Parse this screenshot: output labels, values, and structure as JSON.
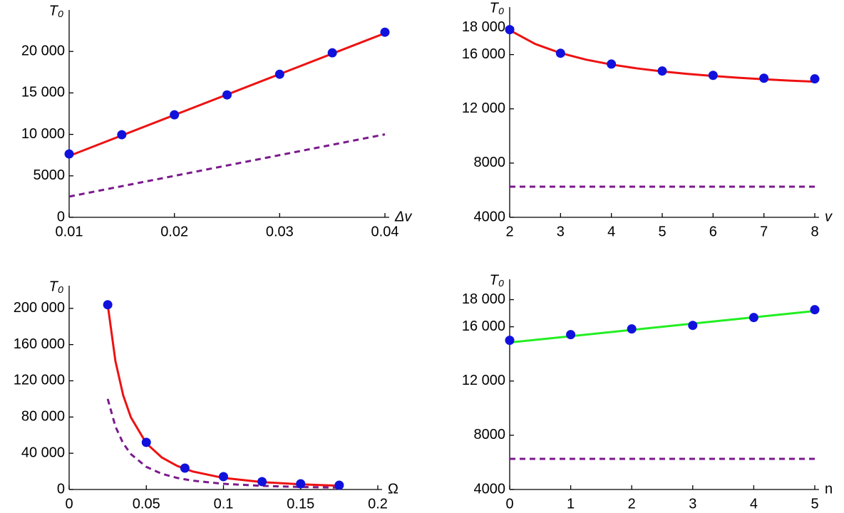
{
  "chart_data": [
    {
      "type": "line",
      "x_label": "Δv",
      "y_label": "T₀",
      "xlim": [
        0.01,
        0.04
      ],
      "xticks": [
        0.01,
        0.02,
        0.03,
        0.04
      ],
      "ylim": [
        0,
        25000
      ],
      "yticks": [
        0,
        5000,
        {
          "value": 10000,
          "label": "10 000"
        },
        {
          "value": 15000,
          "label": "15 000"
        },
        {
          "value": 20000,
          "label": "20 000"
        }
      ],
      "series": [
        {
          "style": "solid",
          "color": "#ee1111",
          "x": [
            0.01,
            0.04
          ],
          "values": [
            7400,
            22200
          ]
        },
        {
          "style": "dashed",
          "color": "#7a1a8c",
          "x": [
            0.01,
            0.04
          ],
          "values": [
            2500,
            10000
          ]
        },
        {
          "style": "markers",
          "color": "#1111dd",
          "x": [
            0.01,
            0.015,
            0.02,
            0.025,
            0.03,
            0.035,
            0.04
          ],
          "values": [
            7640,
            9960,
            12360,
            14760,
            17250,
            19830,
            22320
          ]
        }
      ]
    },
    {
      "type": "line",
      "x_label": "v",
      "y_label": "T₀",
      "xlim": [
        2,
        8
      ],
      "xticks": [
        2,
        3,
        4,
        5,
        6,
        7,
        8
      ],
      "ylim": [
        4000,
        19500
      ],
      "yticks": [
        4000,
        8000,
        {
          "value": 12000,
          "label": "12 000"
        },
        {
          "value": 16000,
          "label": "16 000"
        },
        {
          "value": 18000,
          "label": "18 000"
        }
      ],
      "series": [
        {
          "style": "solid",
          "color": "#ee1111",
          "x": [
            2,
            2.5,
            3,
            3.5,
            4,
            4.5,
            5,
            5.5,
            6,
            6.5,
            7,
            7.5,
            8
          ],
          "values": [
            17800,
            16786,
            16111,
            15628,
            15266,
            14985,
            14760,
            14575,
            14422,
            14292,
            14181,
            14084,
            14000
          ]
        },
        {
          "style": "dashed",
          "color": "#7a1a8c",
          "x": [
            2,
            8
          ],
          "values": [
            6260,
            6260
          ]
        },
        {
          "style": "markers",
          "color": "#1111dd",
          "x": [
            2,
            3,
            4,
            5,
            6,
            7,
            8
          ],
          "values": [
            17840,
            16100,
            15300,
            14790,
            14470,
            14260,
            14210
          ]
        }
      ]
    },
    {
      "type": "line",
      "x_label": "Ω",
      "y_label": "T₀",
      "xlim": [
        0,
        0.2
      ],
      "xticks": [
        0,
        0.05,
        0.1,
        0.15,
        0.2
      ],
      "ylim": [
        0,
        225000
      ],
      "yticks": [
        0,
        {
          "value": 40000,
          "label": "40 000"
        },
        {
          "value": 80000,
          "label": "80 000"
        },
        {
          "value": 120000,
          "label": "120 000"
        },
        {
          "value": 160000,
          "label": "160 000"
        },
        {
          "value": 200000,
          "label": "200 000"
        }
      ],
      "series": [
        {
          "style": "solid",
          "color": "#ee1111",
          "x": [
            0.025,
            0.03,
            0.035,
            0.04,
            0.05,
            0.06,
            0.07,
            0.08,
            0.1,
            0.125,
            0.15,
            0.175
          ],
          "values": [
            204000,
            141667,
            104082,
            79688,
            51000,
            35417,
            26020,
            19922,
            12750,
            8160,
            5667,
            4163
          ]
        },
        {
          "style": "dashed",
          "color": "#7a1a8c",
          "x": [
            0.025,
            0.03,
            0.035,
            0.04,
            0.05,
            0.06,
            0.07,
            0.08,
            0.1,
            0.125,
            0.15,
            0.175
          ],
          "values": [
            100000,
            69444,
            51020,
            39063,
            25000,
            17361,
            12755,
            9766,
            6250,
            4000,
            2778,
            2041
          ]
        },
        {
          "style": "markers",
          "color": "#1111dd",
          "x": [
            0.025,
            0.05,
            0.075,
            0.1,
            0.125,
            0.15,
            0.175
          ],
          "values": [
            204000,
            52000,
            23600,
            14200,
            8700,
            6300,
            4700
          ]
        }
      ]
    },
    {
      "type": "line",
      "x_label": "n",
      "y_label": "T₀",
      "xlim": [
        0,
        5
      ],
      "xticks": [
        0,
        1,
        2,
        3,
        4,
        5
      ],
      "ylim": [
        4000,
        19500
      ],
      "yticks": [
        4000,
        8000,
        {
          "value": 12000,
          "label": "12 000"
        },
        {
          "value": 16000,
          "label": "16 000"
        },
        {
          "value": 18000,
          "label": "18 000"
        }
      ],
      "series": [
        {
          "style": "solid",
          "color": "#22ee22",
          "x": [
            0,
            5
          ],
          "values": [
            14840,
            17160
          ]
        },
        {
          "style": "dashed",
          "color": "#7a1a8c",
          "x": [
            0,
            5
          ],
          "values": [
            6260,
            6260
          ]
        },
        {
          "style": "markers",
          "color": "#1111dd",
          "x": [
            0,
            1,
            2,
            3,
            4,
            5
          ],
          "values": [
            15000,
            15420,
            15840,
            16100,
            16680,
            17260
          ]
        }
      ]
    }
  ]
}
